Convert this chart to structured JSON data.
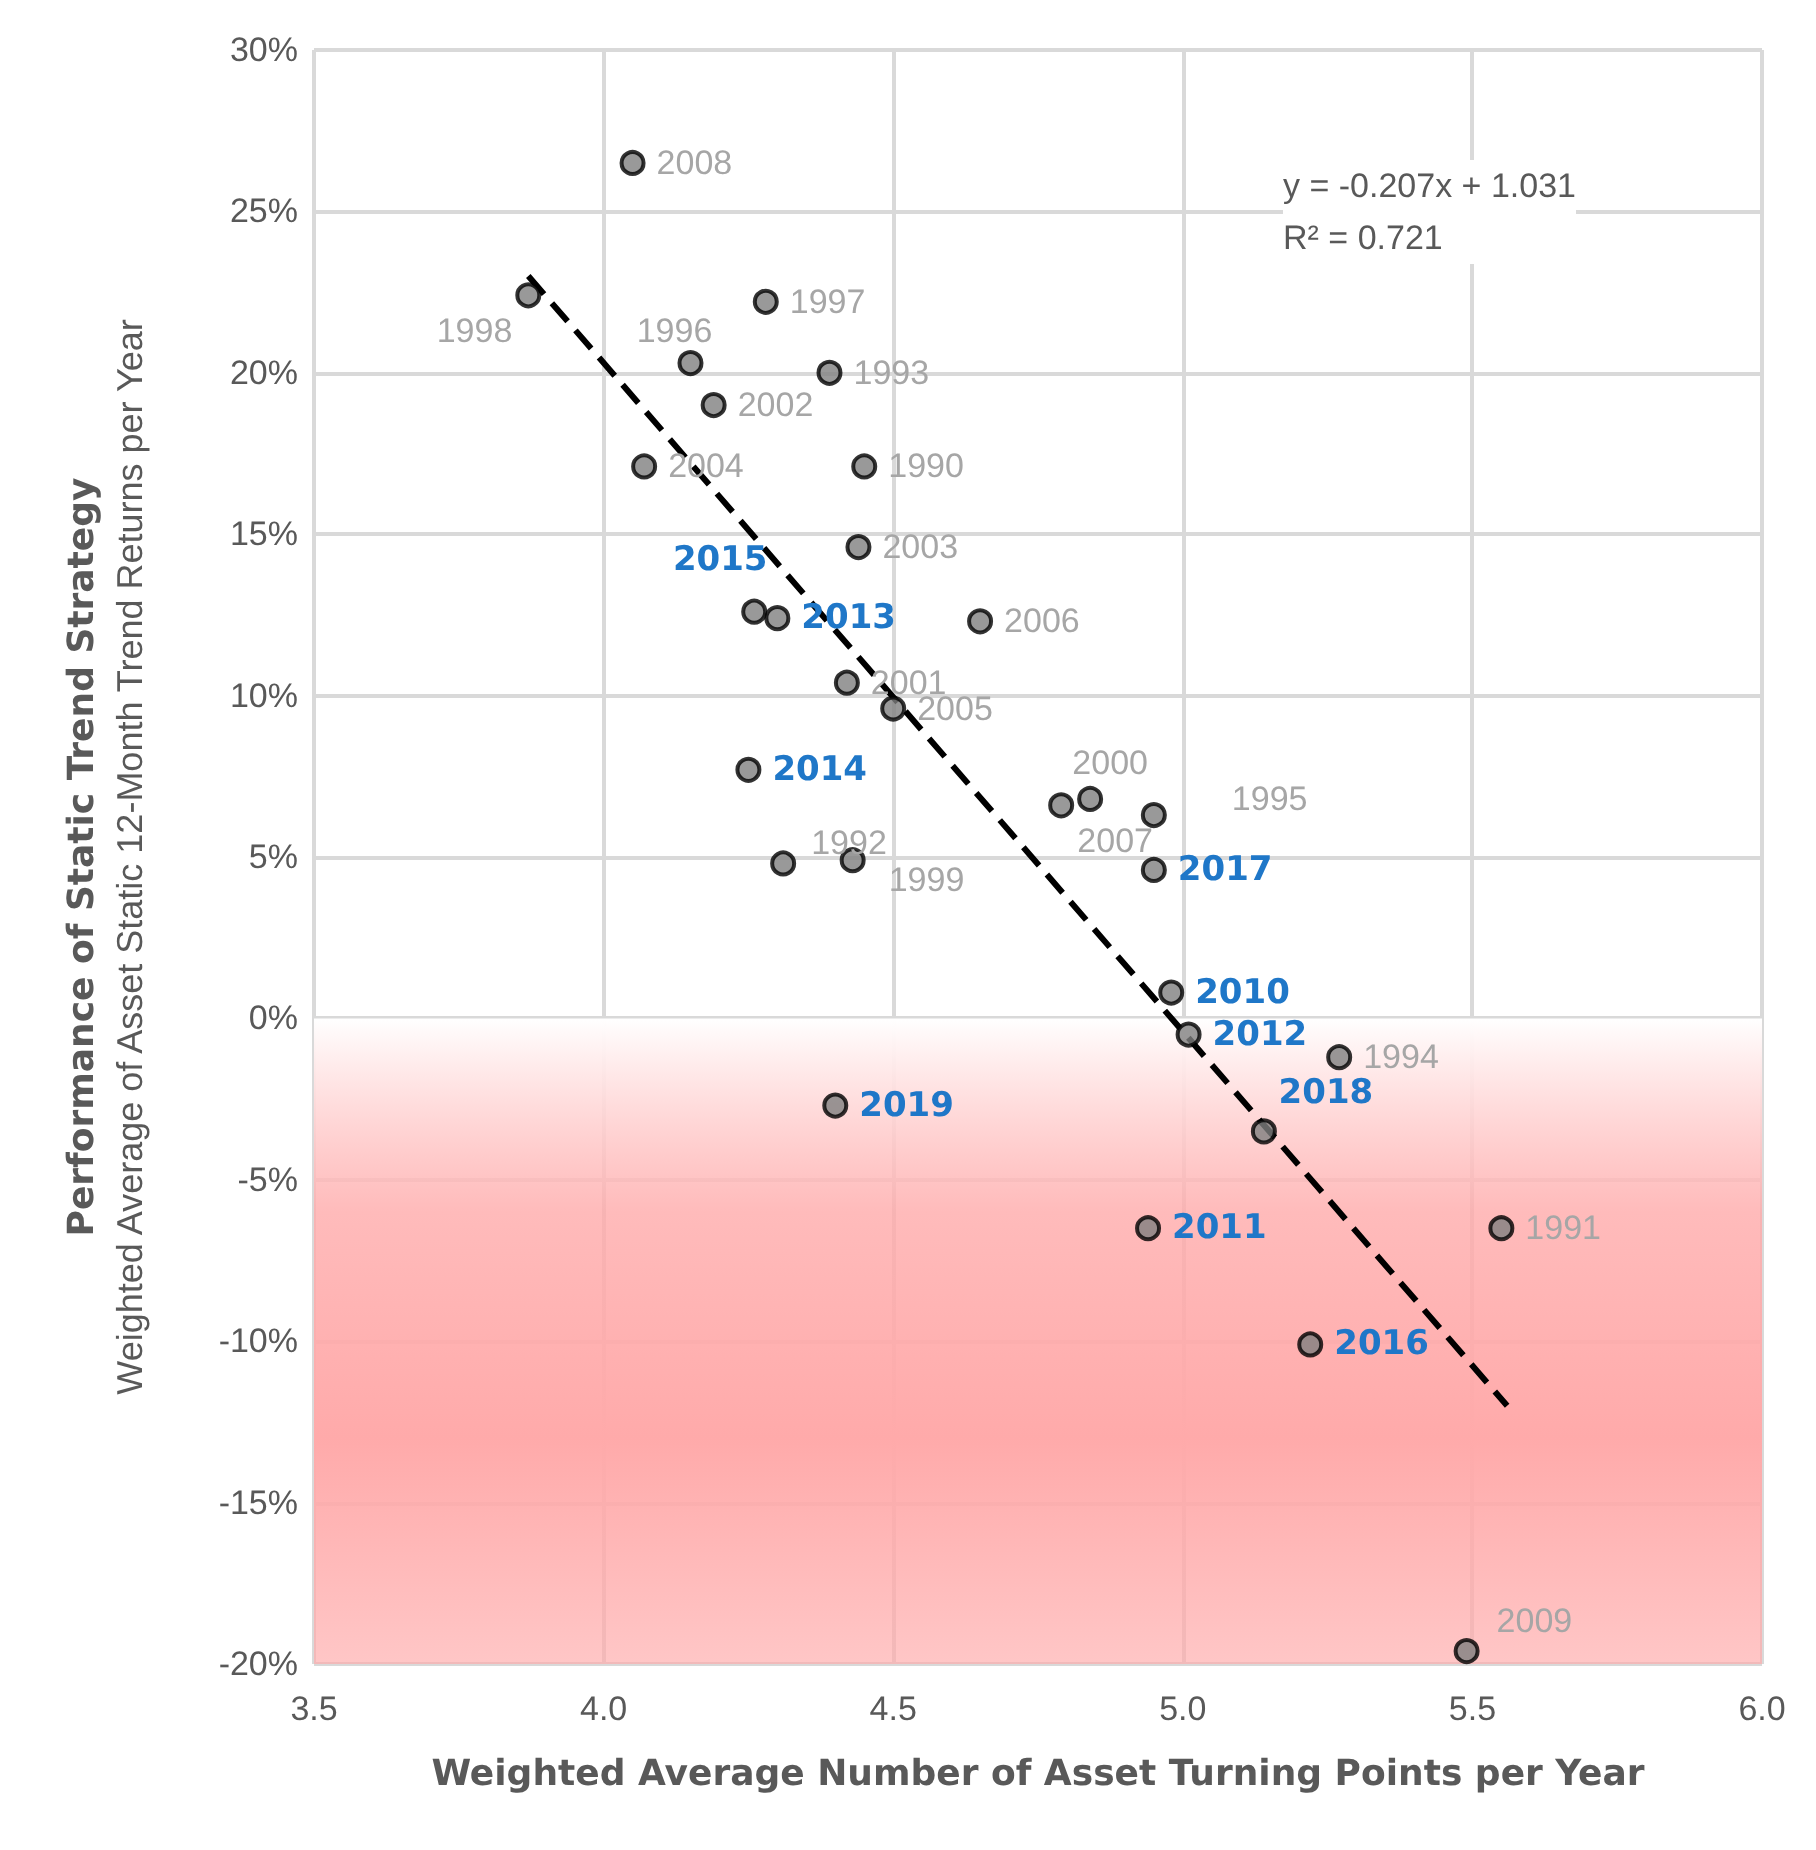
{
  "chart_data": {
    "type": "scatter",
    "xlabel": "Weighted Average Number of Asset Turning Points per Year",
    "ylabel": "Performance of Static Trend Strategy\nWeighted Average of Asset Static 12-Month Trend Returns per Year",
    "xlim": [
      3.5,
      6.0
    ],
    "xticks": [
      {
        "value": 3.5,
        "label": "3.5"
      },
      {
        "value": 4,
        "label": "4.0"
      },
      {
        "value": 4.5,
        "label": "4.5"
      },
      {
        "value": 5,
        "label": "5.0"
      },
      {
        "value": 5.5,
        "label": "5.5"
      },
      {
        "value": 6,
        "label": "6.0"
      }
    ],
    "ylim": [
      -20,
      30
    ],
    "yticks": [
      {
        "value": -20,
        "label": "-20%"
      },
      {
        "value": -15,
        "label": "-15%"
      },
      {
        "value": -10,
        "label": "-10%"
      },
      {
        "value": -5,
        "label": "-5%"
      },
      {
        "value": 0,
        "label": "0%"
      },
      {
        "value": 5,
        "label": "5%"
      },
      {
        "value": 10,
        "label": "10%"
      },
      {
        "value": 15,
        "label": "15%"
      },
      {
        "value": 20,
        "label": "20%"
      },
      {
        "value": 25,
        "label": "25%"
      },
      {
        "value": 30,
        "label": "30%"
      }
    ],
    "grid": true,
    "marker": "circle",
    "series": [
      {
        "color": "#808080",
        "x": [
          4.05,
          3.87,
          4.28,
          4.15,
          4.39,
          4.19,
          4.07,
          4.45,
          4.44,
          4.65,
          4.42,
          4.5,
          4.31,
          4.43,
          4.79,
          4.84,
          4.95,
          5.27,
          5.55,
          5.49
        ],
        "values": [
          26.5,
          22.4,
          22.2,
          20.3,
          20.0,
          19.0,
          17.1,
          17.1,
          14.6,
          12.3,
          10.4,
          9.6,
          4.8,
          4.9,
          6.6,
          6.8,
          6.3,
          -1.2,
          -6.5,
          -19.6
        ]
      },
      {
        "color": "#808080",
        "x": [
          4.26,
          4.3,
          4.25,
          4.95,
          4.98,
          5.01,
          4.4,
          5.14,
          4.94,
          5.22
        ],
        "values": [
          12.6,
          12.4,
          7.7,
          4.6,
          0.8,
          -0.5,
          -2.7,
          -3.5,
          -6.5,
          -10.1
        ]
      },
      {
        "type": "line",
        "color": "#000000",
        "line_style": "dashed",
        "marker": "none",
        "x": [
          3.87,
          5.56
        ],
        "values": [
          23.0,
          -12.0
        ]
      }
    ],
    "bands": [
      {
        "axis": "y",
        "from": -20,
        "to": 0,
        "color": "#ffaaaa"
      }
    ],
    "annotations": [
      "y = -0.207x + 1.031",
      "R² = 0.721",
      {
        "text": "2008",
        "x": 4.05,
        "y": 26.5
      },
      {
        "text": "1998",
        "x": 3.87,
        "y": 22.4
      },
      {
        "text": "1997",
        "x": 4.28,
        "y": 22.2
      },
      {
        "text": "1996",
        "x": 4.15,
        "y": 20.3
      },
      {
        "text": "1993",
        "x": 4.39,
        "y": 20.0
      },
      {
        "text": "2002",
        "x": 4.19,
        "y": 19.0
      },
      {
        "text": "2004",
        "x": 4.07,
        "y": 17.1
      },
      {
        "text": "1990",
        "x": 4.45,
        "y": 17.1
      },
      {
        "text": "2003",
        "x": 4.44,
        "y": 14.6
      },
      {
        "text": "2006",
        "x": 4.65,
        "y": 12.3
      },
      {
        "text": "2001",
        "x": 4.42,
        "y": 10.4
      },
      {
        "text": "2005",
        "x": 4.5,
        "y": 9.6
      },
      {
        "text": "1992",
        "x": 4.31,
        "y": 4.8
      },
      {
        "text": "1999",
        "x": 4.43,
        "y": 4.9
      },
      {
        "text": "2007",
        "x": 4.79,
        "y": 6.6
      },
      {
        "text": "2000",
        "x": 4.84,
        "y": 6.8
      },
      {
        "text": "1995",
        "x": 4.95,
        "y": 6.3
      },
      {
        "text": "1994",
        "x": 5.27,
        "y": -1.2
      },
      {
        "text": "1991",
        "x": 5.55,
        "y": -6.5
      },
      {
        "text": "2009",
        "x": 5.49,
        "y": -19.6
      },
      {
        "text": "2015",
        "x": 4.26,
        "y": 12.6
      },
      {
        "text": "2013",
        "x": 4.3,
        "y": 12.4
      },
      {
        "text": "2014",
        "x": 4.25,
        "y": 7.7
      },
      {
        "text": "2017",
        "x": 4.95,
        "y": 4.6
      },
      {
        "text": "2010",
        "x": 4.98,
        "y": 0.8
      },
      {
        "text": "2012",
        "x": 5.01,
        "y": -0.5
      },
      {
        "text": "2019",
        "x": 4.4,
        "y": -2.7
      },
      {
        "text": "2018",
        "x": 5.14,
        "y": -3.5
      },
      {
        "text": "2011",
        "x": 4.94,
        "y": -6.5
      },
      {
        "text": "2016",
        "x": 5.22,
        "y": -10.1
      }
    ]
  }
}
